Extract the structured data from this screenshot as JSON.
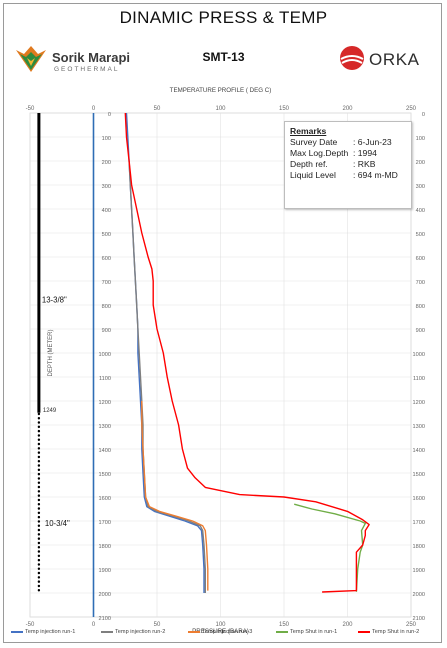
{
  "header": {
    "title": "DINAMIC PRESS & TEMP",
    "well_name": "SMT-13",
    "left_logo": {
      "brand": "Sorik Marapi",
      "sub": "GEOTHERMAL",
      "icon": "sorik-marapi-logo-icon",
      "colors": [
        "#e07a1f",
        "#2e8b3e"
      ]
    },
    "right_logo": {
      "brand": "ORKA",
      "icon": "orka-logo-icon",
      "color": "#d62828"
    }
  },
  "remarks": {
    "heading": "Remarks",
    "rows": [
      {
        "key": "Survey Date",
        "value": ": 6-Jun-23"
      },
      {
        "key": "Max Log.Depth",
        "value": ": 1994"
      },
      {
        "key": "Depth ref.",
        "value": ": RKB"
      },
      {
        "key": "Liquid Level",
        "value": ": 694 m-MD"
      }
    ]
  },
  "chart_data": {
    "type": "line",
    "top_axis": {
      "label": "TEMPERATURE PROFILE ( DEG C)",
      "range": [
        -50,
        250
      ],
      "ticks": [
        -50,
        0,
        50,
        100,
        150,
        200,
        250
      ]
    },
    "bottom_axis": {
      "label": "PRESSURE (BARA)",
      "range": [
        -50,
        250
      ],
      "ticks": [
        -50,
        0,
        50,
        100,
        150,
        200,
        250
      ]
    },
    "y_axis": {
      "label": "DEPTH (METER)",
      "range": [
        0,
        2100
      ],
      "reversed": true,
      "ticks": [
        0,
        100,
        200,
        300,
        400,
        500,
        600,
        700,
        800,
        900,
        1000,
        1100,
        1200,
        1300,
        1400,
        1500,
        1600,
        1700,
        1800,
        1900,
        2000,
        2100
      ]
    },
    "grid": true,
    "legend_position": "bottom",
    "casing": {
      "segments": [
        {
          "label": "13-3/8\"",
          "x": -43,
          "top": 0,
          "bottom": 1249,
          "style": "solid"
        },
        {
          "label": "10-3/4\"",
          "x": -43,
          "top": 1200,
          "bottom": 1990,
          "style": "dotted"
        }
      ],
      "shoe_label": "1249",
      "color": "#000000"
    },
    "series": [
      {
        "name": "Temp injection run-1",
        "color": "#4472c4",
        "points": [
          [
            26,
            0
          ],
          [
            27,
            100
          ],
          [
            28,
            200
          ],
          [
            29,
            300
          ],
          [
            30,
            400
          ],
          [
            31,
            500
          ],
          [
            32,
            600
          ],
          [
            33,
            700
          ],
          [
            34,
            800
          ],
          [
            35,
            900
          ],
          [
            35,
            1000
          ],
          [
            36,
            1100
          ],
          [
            37,
            1200
          ],
          [
            38,
            1300
          ],
          [
            38,
            1400
          ],
          [
            39,
            1500
          ],
          [
            40,
            1600
          ],
          [
            42,
            1640
          ],
          [
            48,
            1660
          ],
          [
            60,
            1680
          ],
          [
            72,
            1700
          ],
          [
            82,
            1720
          ],
          [
            85,
            1740
          ],
          [
            86,
            1800
          ],
          [
            87,
            1900
          ],
          [
            87,
            2000
          ]
        ]
      },
      {
        "name": "Temp injection run-2",
        "color": "#7f7f7f",
        "points": [
          [
            28,
            200
          ],
          [
            29,
            300
          ],
          [
            30,
            400
          ],
          [
            31,
            500
          ],
          [
            32,
            600
          ],
          [
            33,
            700
          ],
          [
            34,
            800
          ],
          [
            35,
            900
          ],
          [
            36,
            1000
          ],
          [
            37,
            1100
          ],
          [
            38,
            1200
          ],
          [
            39,
            1300
          ],
          [
            39,
            1400
          ],
          [
            40,
            1500
          ],
          [
            41,
            1600
          ],
          [
            43,
            1640
          ],
          [
            50,
            1660
          ],
          [
            63,
            1680
          ],
          [
            75,
            1700
          ],
          [
            84,
            1720
          ],
          [
            86,
            1740
          ],
          [
            87,
            1800
          ],
          [
            88,
            1900
          ],
          [
            88,
            2000
          ]
        ]
      },
      {
        "name": "Temp injection run-3",
        "color": "#ed7d31",
        "points": [
          [
            38,
            1200
          ],
          [
            38,
            1300
          ],
          [
            39,
            1400
          ],
          [
            40,
            1500
          ],
          [
            41,
            1600
          ],
          [
            44,
            1640
          ],
          [
            52,
            1660
          ],
          [
            65,
            1680
          ],
          [
            78,
            1700
          ],
          [
            86,
            1720
          ],
          [
            88,
            1740
          ],
          [
            89,
            1800
          ],
          [
            90,
            1900
          ],
          [
            90,
            1990
          ]
        ]
      },
      {
        "name": "Temp Shut in run-1",
        "color": "#70ad47",
        "points": [
          [
            158,
            1630
          ],
          [
            172,
            1650
          ],
          [
            190,
            1670
          ],
          [
            210,
            1700
          ],
          [
            214,
            1710
          ],
          [
            211,
            1740
          ],
          [
            212,
            1800
          ],
          [
            210,
            1830
          ],
          [
            208,
            1900
          ],
          [
            207,
            1995
          ]
        ]
      },
      {
        "name": "Temp Shut in run-2",
        "color": "#ff0000",
        "points": [
          [
            25,
            0
          ],
          [
            26,
            100
          ],
          [
            28,
            200
          ],
          [
            30,
            300
          ],
          [
            34,
            400
          ],
          [
            38,
            500
          ],
          [
            43,
            600
          ],
          [
            46,
            650
          ],
          [
            47,
            700
          ],
          [
            47,
            800
          ],
          [
            50,
            900
          ],
          [
            55,
            1000
          ],
          [
            58,
            1100
          ],
          [
            62,
            1200
          ],
          [
            67,
            1300
          ],
          [
            70,
            1400
          ],
          [
            74,
            1480
          ],
          [
            80,
            1520
          ],
          [
            88,
            1560
          ],
          [
            115,
            1590
          ],
          [
            150,
            1600
          ],
          [
            175,
            1620
          ],
          [
            200,
            1660
          ],
          [
            212,
            1695
          ],
          [
            217,
            1715
          ],
          [
            214,
            1740
          ],
          [
            214,
            1760
          ],
          [
            212,
            1800
          ],
          [
            207,
            1830
          ],
          [
            207,
            1990
          ],
          [
            180,
            1996
          ]
        ]
      }
    ]
  }
}
